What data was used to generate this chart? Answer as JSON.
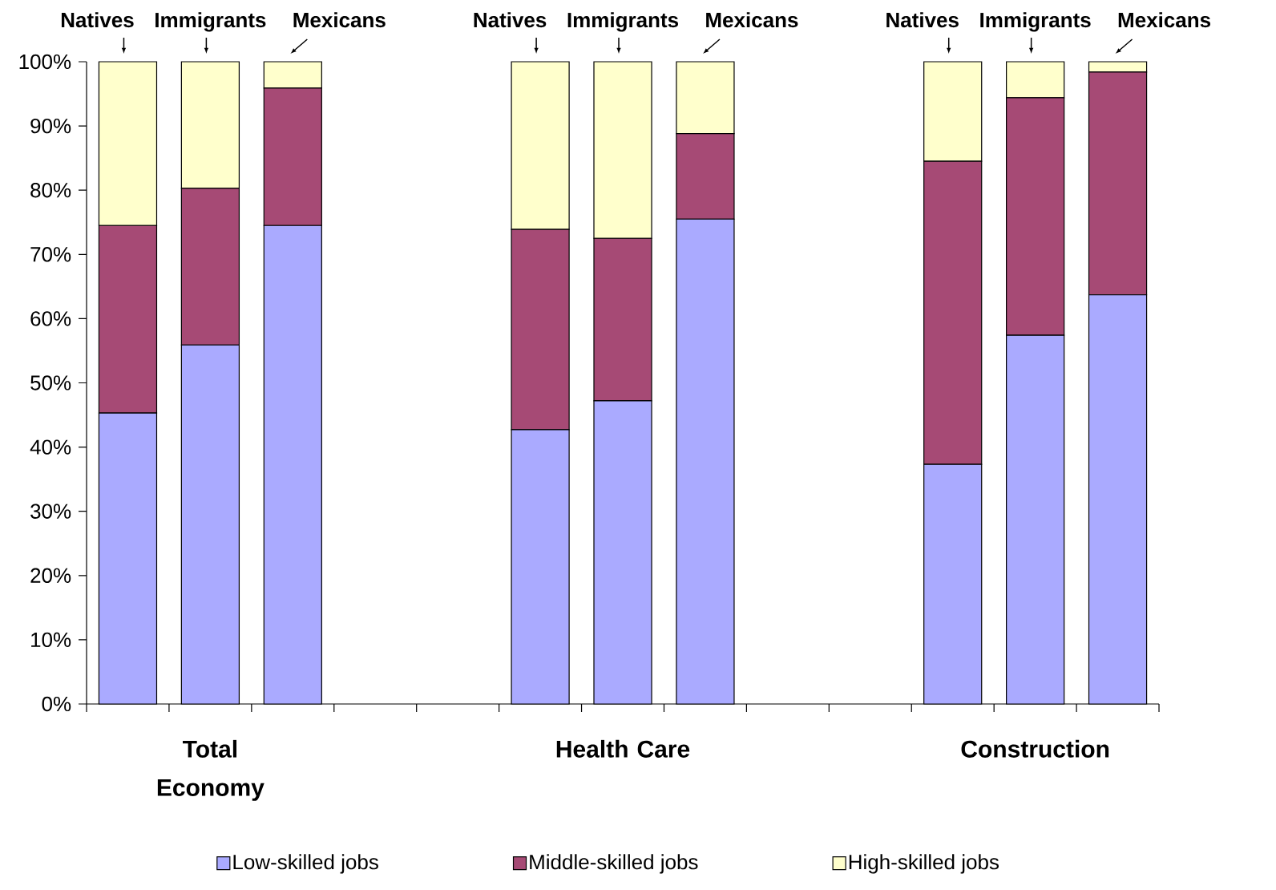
{
  "chart_data": {
    "type": "bar",
    "stacked": true,
    "categories": [
      "Natives",
      "Immigrants",
      "Mexicans",
      null,
      null,
      "Natives",
      "Immigrants",
      "Mexicans",
      null,
      null,
      "Natives",
      "Immigrants",
      "Mexicans"
    ],
    "series": [
      {
        "name": "Low-skilled jobs",
        "color": "#aaaaff",
        "values": [
          45.3,
          55.9,
          74.5,
          null,
          null,
          42.7,
          47.2,
          75.5,
          null,
          null,
          37.3,
          57.4,
          63.7
        ]
      },
      {
        "name": "Middle-skilled jobs",
        "color": "#a64a75",
        "values": [
          29.2,
          24.4,
          21.4,
          null,
          null,
          31.2,
          25.3,
          13.3,
          null,
          null,
          47.2,
          37.0,
          34.7
        ]
      },
      {
        "name": "High-skilled jobs",
        "color": "#ffffcc",
        "values": [
          25.5,
          19.7,
          4.1,
          null,
          null,
          26.1,
          27.5,
          11.2,
          null,
          null,
          15.5,
          5.6,
          1.6
        ]
      }
    ],
    "ylim": [
      0,
      100
    ],
    "yticks": [
      {
        "value": 0,
        "label": "0%"
      },
      {
        "value": 10,
        "label": "10%"
      },
      {
        "value": 20,
        "label": "20%"
      },
      {
        "value": 30,
        "label": "30%"
      },
      {
        "value": 40,
        "label": "40%"
      },
      {
        "value": 50,
        "label": "50%"
      },
      {
        "value": 60,
        "label": "60%"
      },
      {
        "value": 70,
        "label": "70%"
      },
      {
        "value": 80,
        "label": "80%"
      },
      {
        "value": 90,
        "label": "90%"
      },
      {
        "value": 100,
        "label": "100%"
      }
    ],
    "annotations": [
      "Total Economy",
      "Health Care",
      "Construction"
    ],
    "legend": "bottom"
  }
}
